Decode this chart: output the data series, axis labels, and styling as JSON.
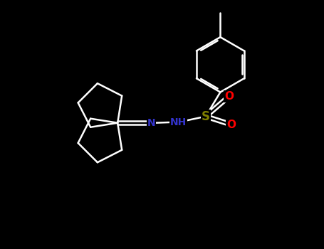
{
  "bg_color": "#000000",
  "bond_lw": 1.8,
  "figsize": [
    4.55,
    3.5
  ],
  "dpi": 100,
  "xlim": [
    0.0,
    10.0
  ],
  "ylim": [
    0.0,
    7.5
  ],
  "S_color": "#808000",
  "O_color": "#ff0000",
  "N_color": "#3333cc",
  "bond_color": "#ffffff",
  "text_fontsize": 10
}
